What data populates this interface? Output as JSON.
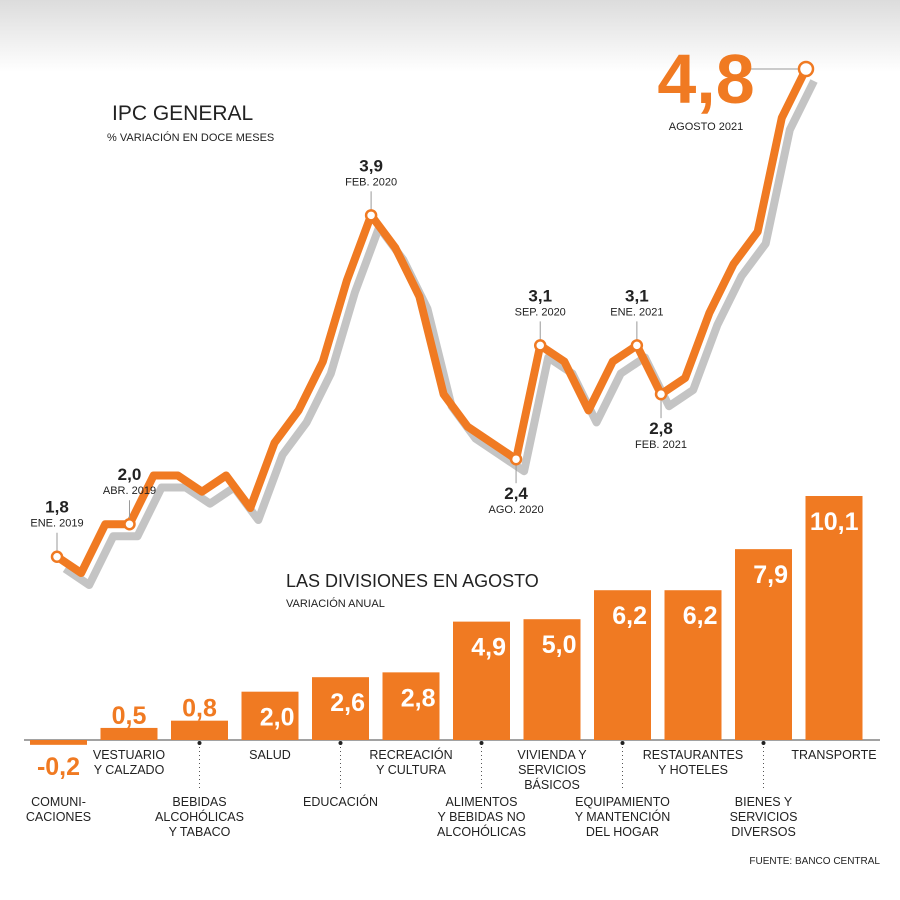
{
  "chart_data": [
    {
      "type": "line",
      "title": "IPC GENERAL",
      "subtitle": "% VARIACIÓN EN DOCE MESES",
      "categories": [
        "ENE. 2019",
        null,
        null,
        "ABR. 2019",
        null,
        null,
        null,
        null,
        null,
        null,
        null,
        null,
        null,
        "FEB. 2020",
        null,
        null,
        null,
        null,
        null,
        "AGO. 2020",
        "SEP. 2020",
        null,
        null,
        null,
        "ENE. 2021",
        "FEB. 2021",
        null,
        null,
        null,
        null,
        null,
        "AGOSTO 2021"
      ],
      "series": [
        {
          "color": "#f07a22",
          "values": [
            1.8,
            1.7,
            2.0,
            2.0,
            2.3,
            2.3,
            2.2,
            2.3,
            2.1,
            2.5,
            2.7,
            3.0,
            3.5,
            3.9,
            3.7,
            3.4,
            2.8,
            2.6,
            2.5,
            2.4,
            3.1,
            3.0,
            2.7,
            3.0,
            3.1,
            2.8,
            2.9,
            3.3,
            3.6,
            3.8,
            4.5,
            4.8
          ],
          "value_labels": [
            "1,8",
            null,
            null,
            "2,0",
            null,
            null,
            null,
            null,
            null,
            null,
            null,
            null,
            null,
            "3,9",
            null,
            null,
            null,
            null,
            null,
            "2,4",
            "3,1",
            null,
            null,
            null,
            "3,1",
            "2,8",
            null,
            null,
            null,
            null,
            null,
            "4,8"
          ]
        }
      ]
    },
    {
      "type": "bar",
      "title": "LAS DIVISIONES EN AGOSTO",
      "subtitle": "VARIACIÓN ANUAL",
      "color": "#f07a22",
      "categories": [
        "COMUNI-\nCACIONES",
        "VESTUARIO\nY CALZADO",
        "BEBIDAS\nALCOHÓLICAS\nY TABACO",
        "SALUD",
        "EDUCACIÓN",
        "RECREACIÓN\nY CULTURA",
        "ALIMENTOS\nY BEBIDAS NO\nALCOHÓLICAS",
        "VIVIENDA Y\nSERVICIOS\nBÁSICOS",
        "EQUIPAMIENTO\nY MANTENCIÓN\nDEL HOGAR",
        "RESTAURANTES\nY HOTELES",
        "BIENES Y\nSERVICIOS\nDIVERSOS",
        "TRANSPORTE"
      ],
      "values": [
        -0.2,
        0.5,
        0.8,
        2.0,
        2.6,
        2.8,
        4.9,
        5.0,
        6.2,
        6.2,
        7.9,
        10.1
      ],
      "value_labels": [
        "-0,2",
        "0,5",
        "0,8",
        "2,0",
        "2,6",
        "2,8",
        "4,9",
        "5,0",
        "6,2",
        "6,2",
        "7,9",
        "10,1"
      ],
      "source": "FUENTE: BANCO CENTRAL"
    }
  ]
}
